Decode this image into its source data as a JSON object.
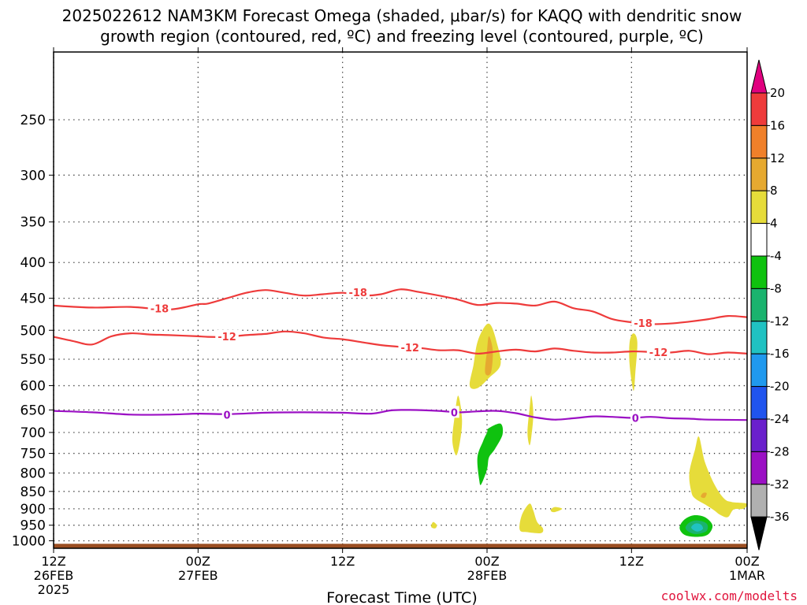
{
  "chart_data": {
    "type": "heatmap",
    "title_line1": "2025022612 NAM3KM Forecast Omega (shaded, μbar/s) for KAQQ with dendritic snow",
    "title_line2": "growth region (contoured, red, ºC) and freezing level (contoured, purple, ºC)",
    "xlabel": "Forecast Time (UTC)",
    "ylabel": "",
    "credit": "coolwx.com/modelts",
    "y_axis": {
      "type": "log-pressure",
      "ticks": [
        "250",
        "300",
        "350",
        "400",
        "450",
        "500",
        "550",
        "600",
        "650",
        "700",
        "750",
        "800",
        "850",
        "900",
        "950",
        "1000"
      ],
      "range_hpa": [
        200,
        1025
      ],
      "grid": "dotted"
    },
    "x_axis": {
      "range_hours": [
        0,
        36
      ],
      "ticks": [
        {
          "hour": 0,
          "l1": "12Z",
          "l2": "26FEB",
          "l3": "2025"
        },
        {
          "hour": 7.5,
          "l1": "00Z",
          "l2": "27FEB",
          "l3": ""
        },
        {
          "hour": 15,
          "l1": "12Z",
          "l2": "",
          "l3": ""
        },
        {
          "hour": 22.5,
          "l1": "00Z",
          "l2": "28FEB",
          "l3": ""
        },
        {
          "hour": 30,
          "l1": "12Z",
          "l2": "",
          "l3": ""
        },
        {
          "hour": 36,
          "l1": "00Z",
          "l2": "1MAR",
          "l3": ""
        }
      ]
    },
    "colorbar": {
      "labels": [
        "20",
        "16",
        "12",
        "8",
        "4",
        "-4",
        "-8",
        "-12",
        "-16",
        "-20",
        "-24",
        "-28",
        "-32",
        "-36"
      ],
      "colors": [
        "#e0007f",
        "#ee3b3b",
        "#f0802a",
        "#e6a930",
        "#e6dc3a",
        "#ffffff",
        "#0fc20f",
        "#1ab36e",
        "#20c2c2",
        "#2099ee",
        "#2054ee",
        "#6a20cc",
        "#9b10c4",
        "#b0b0b0",
        "#000000"
      ]
    },
    "contours": [
      {
        "label": "-18",
        "color": "#ee3b3b",
        "points": [
          [
            0,
            461
          ],
          [
            2,
            464
          ],
          [
            4,
            463
          ],
          [
            6,
            467
          ],
          [
            7.5,
            459
          ],
          [
            8,
            458
          ],
          [
            9,
            450
          ],
          [
            10,
            442
          ],
          [
            11,
            438
          ],
          [
            12,
            442
          ],
          [
            13,
            446
          ],
          [
            14,
            444
          ],
          [
            15,
            442
          ],
          [
            16,
            446
          ],
          [
            17,
            444
          ],
          [
            18,
            437
          ],
          [
            19,
            441
          ],
          [
            20,
            446
          ],
          [
            21,
            452
          ],
          [
            22,
            460
          ],
          [
            23,
            457
          ],
          [
            24,
            458
          ],
          [
            25,
            461
          ],
          [
            26,
            455
          ],
          [
            27,
            465
          ],
          [
            28,
            470
          ],
          [
            29,
            482
          ],
          [
            30,
            487
          ],
          [
            31,
            490
          ],
          [
            32,
            489
          ],
          [
            33,
            486
          ],
          [
            34,
            482
          ],
          [
            35,
            477
          ],
          [
            36,
            479
          ]
        ],
        "label_at": [
          [
            5.5,
            465
          ],
          [
            15.8,
            441
          ],
          [
            30.6,
            488
          ]
        ]
      },
      {
        "label": "-12",
        "color": "#ee3b3b",
        "points": [
          [
            0,
            511
          ],
          [
            1,
            518
          ],
          [
            2,
            524
          ],
          [
            3,
            510
          ],
          [
            4,
            505
          ],
          [
            5,
            507
          ],
          [
            6,
            508
          ],
          [
            7.5,
            510
          ],
          [
            8,
            511
          ],
          [
            9,
            511
          ],
          [
            10,
            508
          ],
          [
            11,
            506
          ],
          [
            12,
            502
          ],
          [
            13,
            505
          ],
          [
            14,
            512
          ],
          [
            15,
            515
          ],
          [
            16,
            520
          ],
          [
            17,
            525
          ],
          [
            18,
            528
          ],
          [
            19,
            530
          ],
          [
            20,
            534
          ],
          [
            21,
            534
          ],
          [
            22,
            540
          ],
          [
            23,
            536
          ],
          [
            24,
            533
          ],
          [
            25,
            536
          ],
          [
            26,
            531
          ],
          [
            27,
            535
          ],
          [
            28,
            538
          ],
          [
            29,
            538
          ],
          [
            30,
            536
          ],
          [
            31,
            537
          ],
          [
            32,
            538
          ],
          [
            33,
            535
          ],
          [
            34,
            541
          ],
          [
            35,
            538
          ],
          [
            36,
            540
          ]
        ],
        "label_at": [
          [
            9.0,
            510
          ],
          [
            18.5,
            529
          ],
          [
            31.4,
            537
          ]
        ]
      },
      {
        "label": "0",
        "color": "#9b10c4",
        "points": [
          [
            0,
            652
          ],
          [
            2,
            655
          ],
          [
            4,
            660
          ],
          [
            6,
            660
          ],
          [
            7.5,
            658
          ],
          [
            9,
            659
          ],
          [
            11,
            656
          ],
          [
            13,
            655
          ],
          [
            15,
            656
          ],
          [
            16.5,
            658
          ],
          [
            17.5,
            651
          ],
          [
            18.5,
            650
          ],
          [
            20,
            652
          ],
          [
            21,
            655
          ],
          [
            22,
            653
          ],
          [
            23,
            652
          ],
          [
            24,
            657
          ],
          [
            25,
            666
          ],
          [
            26,
            671
          ],
          [
            27,
            668
          ],
          [
            28,
            664
          ],
          [
            29,
            665
          ],
          [
            30,
            667
          ],
          [
            31,
            665
          ],
          [
            32,
            668
          ],
          [
            33,
            669
          ],
          [
            34,
            671
          ],
          [
            36,
            672
          ]
        ],
        "label_at": [
          [
            9.0,
            660
          ],
          [
            20.8,
            655
          ],
          [
            30.2,
            667
          ]
        ]
      }
    ],
    "omega_regions": [
      {
        "color": "#e6dc3a",
        "points": [
          [
            21.6,
            600
          ],
          [
            21.8,
            560
          ],
          [
            22.0,
            520
          ],
          [
            22.4,
            493
          ],
          [
            22.7,
            492
          ],
          [
            23.0,
            520
          ],
          [
            23.2,
            560
          ],
          [
            22.6,
            585
          ],
          [
            22.0,
            605
          ]
        ]
      },
      {
        "color": "#e6a930",
        "points": [
          [
            22.4,
            575
          ],
          [
            22.5,
            535
          ],
          [
            22.6,
            510
          ],
          [
            22.8,
            535
          ],
          [
            22.7,
            575
          ]
        ]
      },
      {
        "color": "#e6dc3a",
        "points": [
          [
            20.7,
            720
          ],
          [
            20.8,
            670
          ],
          [
            21.0,
            620
          ],
          [
            21.2,
            670
          ],
          [
            21.1,
            720
          ],
          [
            20.9,
            755
          ]
        ]
      },
      {
        "color": "#e6dc3a",
        "points": [
          [
            24.6,
            700
          ],
          [
            24.7,
            650
          ],
          [
            24.8,
            620
          ],
          [
            24.9,
            660
          ],
          [
            24.8,
            710
          ],
          [
            24.7,
            730
          ]
        ]
      },
      {
        "color": "#e6dc3a",
        "points": [
          [
            29.9,
            560
          ],
          [
            29.9,
            520
          ],
          [
            30.1,
            505
          ],
          [
            30.3,
            520
          ],
          [
            30.2,
            575
          ],
          [
            30.1,
            610
          ]
        ]
      },
      {
        "color": "#0fc20f",
        "points": [
          [
            22.1,
            820
          ],
          [
            22.0,
            760
          ],
          [
            22.3,
            720
          ],
          [
            22.5,
            700
          ],
          [
            22.6,
            690
          ],
          [
            23.2,
            680
          ],
          [
            23.3,
            705
          ],
          [
            22.9,
            740
          ],
          [
            22.6,
            760
          ],
          [
            22.5,
            790
          ],
          [
            22.2,
            830
          ]
        ]
      },
      {
        "color": "#e6dc3a",
        "points": [
          [
            19.6,
            955
          ],
          [
            19.7,
            940
          ],
          [
            19.9,
            950
          ],
          [
            19.8,
            960
          ]
        ]
      },
      {
        "color": "#e6dc3a",
        "points": [
          [
            24.2,
            965
          ],
          [
            24.3,
            920
          ],
          [
            24.7,
            885
          ],
          [
            24.9,
            905
          ],
          [
            25.1,
            940
          ],
          [
            25.4,
            960
          ],
          [
            25.3,
            975
          ],
          [
            24.6,
            972
          ]
        ]
      },
      {
        "color": "#e6dc3a",
        "points": [
          [
            25.8,
            905
          ],
          [
            26.0,
            895
          ],
          [
            26.4,
            900
          ],
          [
            26.0,
            910
          ]
        ]
      },
      {
        "color": "#e6dc3a",
        "points": [
          [
            33.1,
            850
          ],
          [
            33.0,
            800
          ],
          [
            33.3,
            740
          ],
          [
            33.5,
            710
          ],
          [
            33.8,
            770
          ],
          [
            34.3,
            830
          ],
          [
            34.8,
            870
          ],
          [
            35.2,
            880
          ],
          [
            36.0,
            885
          ],
          [
            35.8,
            900
          ],
          [
            35.3,
            902
          ],
          [
            35.0,
            925
          ],
          [
            34.6,
            918
          ],
          [
            34.3,
            905
          ],
          [
            33.9,
            890
          ],
          [
            33.3,
            870
          ]
        ]
      },
      {
        "color": "#e6a930",
        "points": [
          [
            33.6,
            865
          ],
          [
            33.7,
            855
          ],
          [
            33.9,
            855
          ],
          [
            33.8,
            868
          ]
        ]
      },
      {
        "color": "#0fc20f",
        "points": [
          [
            32.5,
            960
          ],
          [
            32.7,
            935
          ],
          [
            33.2,
            920
          ],
          [
            33.8,
            925
          ],
          [
            34.2,
            950
          ],
          [
            34.0,
            978
          ],
          [
            33.5,
            987
          ],
          [
            32.8,
            982
          ]
        ]
      },
      {
        "color": "#1ab36e",
        "points": [
          [
            32.8,
            958
          ],
          [
            33.0,
            942
          ],
          [
            33.4,
            935
          ],
          [
            33.9,
            945
          ],
          [
            33.9,
            968
          ],
          [
            33.4,
            978
          ],
          [
            33.0,
            972
          ]
        ]
      },
      {
        "color": "#20c2c2",
        "points": [
          [
            33.1,
            958
          ],
          [
            33.3,
            945
          ],
          [
            33.6,
            948
          ],
          [
            33.7,
            962
          ],
          [
            33.4,
            970
          ]
        ]
      }
    ],
    "surface": {
      "color": "#9a4e22",
      "top_hpa": 1010
    }
  }
}
